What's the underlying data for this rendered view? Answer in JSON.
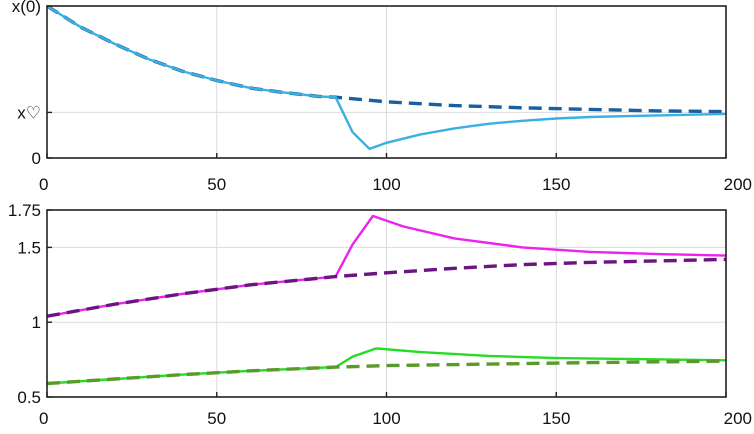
{
  "chart_data": [
    {
      "type": "line",
      "xlim": [
        0,
        200
      ],
      "ylim": [
        0,
        1
      ],
      "x_ticks": [
        0,
        50,
        100,
        150,
        200
      ],
      "x_tick_labels": [
        "0",
        "50",
        "100",
        "150",
        "200"
      ],
      "y_tick_values": [
        0,
        0.3,
        1
      ],
      "y_tick_labels": [
        "0",
        "x♡",
        "x(0)"
      ],
      "grid": true,
      "colors": {
        "solid": "#3ab0e0",
        "dashed": "#1a5fa0"
      },
      "series": [
        {
          "style": "dashed",
          "color": "#1a5fa0",
          "x": [
            0,
            10,
            20,
            30,
            40,
            50,
            60,
            70,
            80,
            85,
            100,
            120,
            140,
            160,
            180,
            200
          ],
          "y": [
            1.0,
            0.86,
            0.75,
            0.65,
            0.57,
            0.51,
            0.46,
            0.43,
            0.405,
            0.4,
            0.37,
            0.345,
            0.33,
            0.32,
            0.31,
            0.305
          ]
        },
        {
          "style": "solid",
          "color": "#3ab0e0",
          "x": [
            0,
            10,
            20,
            30,
            40,
            50,
            60,
            70,
            80,
            85,
            90,
            95,
            100,
            110,
            120,
            130,
            140,
            150,
            160,
            170,
            180,
            190,
            200
          ],
          "y": [
            1.0,
            0.86,
            0.75,
            0.65,
            0.57,
            0.51,
            0.46,
            0.43,
            0.405,
            0.4,
            0.17,
            0.06,
            0.1,
            0.155,
            0.195,
            0.225,
            0.245,
            0.26,
            0.27,
            0.275,
            0.28,
            0.285,
            0.29
          ]
        }
      ]
    },
    {
      "type": "line",
      "xlim": [
        0,
        200
      ],
      "ylim": [
        0.5,
        1.75
      ],
      "x_ticks": [
        0,
        50,
        100,
        150,
        200
      ],
      "x_tick_labels": [
        "0",
        "50",
        "100",
        "150",
        "200"
      ],
      "y_tick_values": [
        0.5,
        1,
        1.5,
        1.75
      ],
      "y_tick_labels": [
        "0.5",
        "1",
        "1.5",
        "1.75"
      ],
      "grid": true,
      "colors": {
        "magenta": "#ee22ee",
        "magenta_dashed": "#6a1580",
        "green": "#22dd22",
        "green_dashed": "#5a9a2a"
      },
      "series": [
        {
          "style": "solid",
          "color": "#ee22ee",
          "x": [
            0,
            20,
            40,
            60,
            85,
            90,
            96,
            105,
            120,
            140,
            160,
            180,
            200
          ],
          "y": [
            1.04,
            1.12,
            1.19,
            1.25,
            1.305,
            1.52,
            1.71,
            1.64,
            1.56,
            1.5,
            1.47,
            1.455,
            1.445
          ]
        },
        {
          "style": "dashed",
          "color": "#6a1580",
          "x": [
            0,
            20,
            40,
            60,
            85,
            100,
            120,
            140,
            160,
            180,
            200
          ],
          "y": [
            1.04,
            1.12,
            1.19,
            1.25,
            1.305,
            1.33,
            1.36,
            1.385,
            1.4,
            1.41,
            1.42
          ]
        },
        {
          "style": "solid",
          "color": "#22dd22",
          "x": [
            0,
            20,
            40,
            60,
            85,
            90,
            97,
            110,
            130,
            150,
            170,
            200
          ],
          "y": [
            0.59,
            0.62,
            0.65,
            0.675,
            0.7,
            0.77,
            0.825,
            0.8,
            0.775,
            0.76,
            0.755,
            0.745
          ]
        },
        {
          "style": "dashed",
          "color": "#5a9a2a",
          "x": [
            0,
            20,
            40,
            60,
            85,
            100,
            130,
            160,
            200
          ],
          "y": [
            0.59,
            0.62,
            0.65,
            0.675,
            0.7,
            0.71,
            0.72,
            0.73,
            0.74
          ]
        }
      ]
    }
  ]
}
